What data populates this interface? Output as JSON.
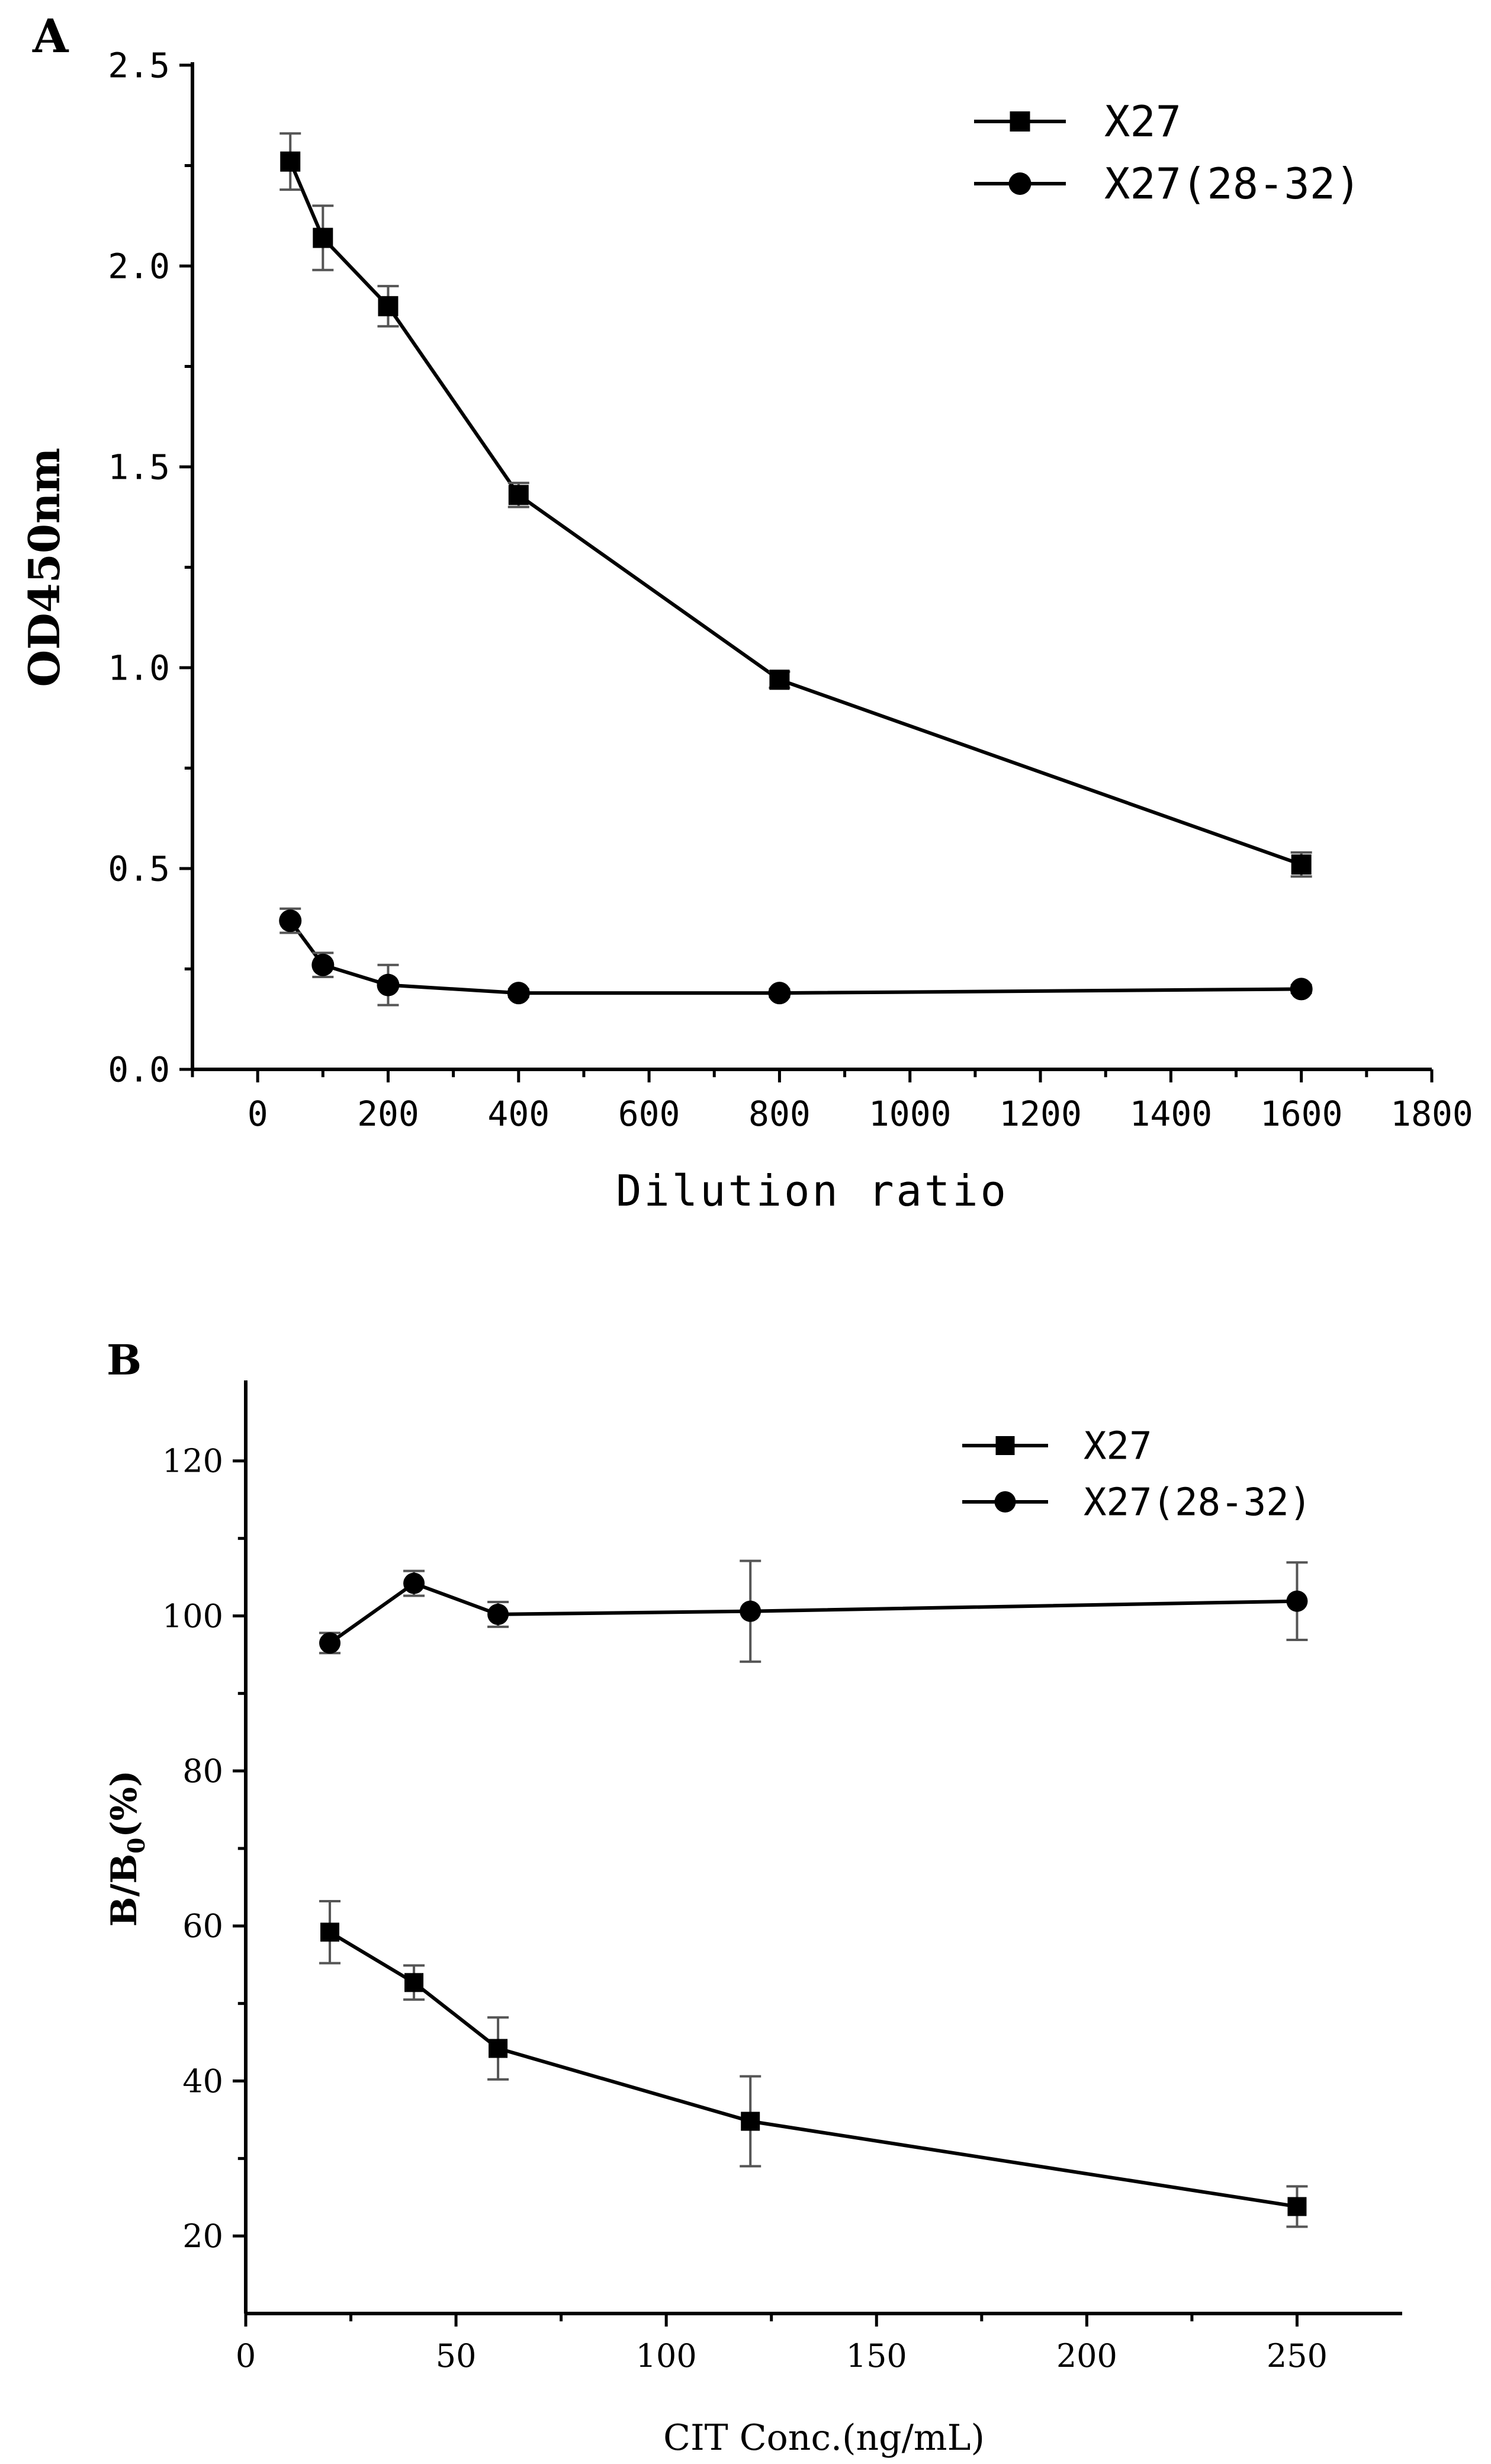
{
  "chart_data": [
    {
      "type": "line",
      "panel_label": "A",
      "title": "",
      "xlabel": "Dilution ratio",
      "ylabel": "OD450nm",
      "xlim": [
        -100,
        1800
      ],
      "ylim": [
        0,
        2.5
      ],
      "x_ticks": [
        0,
        200,
        400,
        600,
        800,
        1000,
        1200,
        1400,
        1600,
        1800
      ],
      "x_tick_labels": [
        "0",
        "200",
        "400",
        "600",
        "800",
        "1000",
        "1200",
        "1400",
        "1600",
        "1800"
      ],
      "y_ticks": [
        0,
        0.5,
        1.0,
        1.5,
        2.0,
        2.5
      ],
      "y_tick_labels": [
        "0.0",
        "0.5",
        "1.0",
        "1.5",
        "2.0",
        "2.5"
      ],
      "legend_position": "top-right",
      "grid": false,
      "series": [
        {
          "name": "X27",
          "marker": "square",
          "x": [
            50,
            100,
            200,
            400,
            800,
            1600
          ],
          "values": [
            2.26,
            2.07,
            1.9,
            1.43,
            0.97,
            0.51
          ],
          "errors": [
            0.07,
            0.08,
            0.05,
            0.03,
            0.02,
            0.03
          ]
        },
        {
          "name": "X27(28-32)",
          "marker": "circle",
          "x": [
            50,
            100,
            200,
            400,
            800,
            1600
          ],
          "values": [
            0.37,
            0.26,
            0.21,
            0.19,
            0.19,
            0.2
          ],
          "errors": [
            0.03,
            0.03,
            0.05,
            0.01,
            0.01,
            0.01
          ]
        }
      ]
    },
    {
      "type": "line",
      "panel_label": "B",
      "title": "",
      "xlabel": "CIT Conc.(ng/mL)",
      "ylabel": "B/B0(%)",
      "ylabel_main": "B/B",
      "ylabel_sub": "0",
      "ylabel_tail": "(%)",
      "xlim": [
        0,
        275
      ],
      "ylim": [
        10,
        130
      ],
      "x_ticks": [
        0,
        50,
        100,
        150,
        200,
        250
      ],
      "x_tick_labels": [
        "0",
        "50",
        "100",
        "150",
        "200",
        "250"
      ],
      "y_ticks": [
        20,
        40,
        60,
        80,
        100,
        120
      ],
      "y_tick_labels": [
        "20",
        "40",
        "60",
        "80",
        "100",
        "120"
      ],
      "legend_position": "top-right",
      "grid": false,
      "series": [
        {
          "name": "X27",
          "marker": "square",
          "x": [
            20,
            40,
            60,
            120,
            250
          ],
          "values": [
            59.2,
            52.7,
            44.2,
            34.8,
            23.8
          ],
          "errors": [
            4.0,
            2.2,
            4.0,
            5.8,
            2.6
          ]
        },
        {
          "name": "X27(28-32)",
          "marker": "circle",
          "x": [
            20,
            40,
            60,
            120,
            250
          ],
          "values": [
            96.5,
            104.2,
            100.2,
            100.6,
            101.9
          ],
          "errors": [
            1.3,
            1.6,
            1.6,
            6.5,
            5.0
          ]
        }
      ]
    }
  ]
}
